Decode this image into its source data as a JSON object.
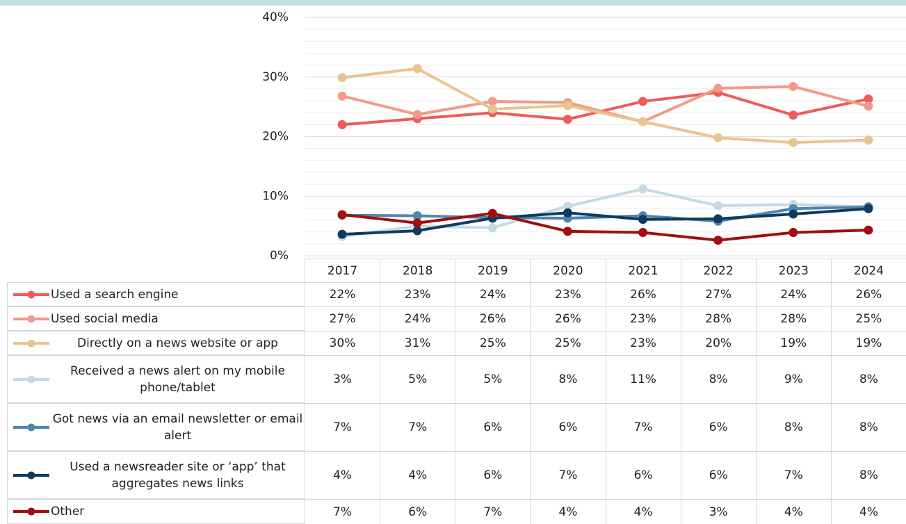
{
  "chart_data": {
    "type": "line",
    "categories": [
      "2017",
      "2018",
      "2019",
      "2020",
      "2021",
      "2022",
      "2023",
      "2024"
    ],
    "ylim": [
      0,
      40
    ],
    "yticks": [
      {
        "value": 0,
        "label": "0%"
      },
      {
        "value": 10,
        "label": "10%"
      },
      {
        "value": 20,
        "label": "20%"
      },
      {
        "value": 30,
        "label": "30%"
      },
      {
        "value": 40,
        "label": "40%"
      }
    ],
    "minor_yticks": [
      2,
      4,
      6,
      8,
      12,
      14,
      16,
      18,
      22,
      24,
      26,
      28,
      32,
      34,
      36,
      38
    ],
    "grid": true,
    "series": [
      {
        "name": "Used a search engine",
        "color": "#ee5b5b",
        "values": [
          22.0,
          23.0,
          24.0,
          22.9,
          25.9,
          27.4,
          23.6,
          26.3
        ],
        "value_labels": [
          "22%",
          "23%",
          "24%",
          "23%",
          "26%",
          "27%",
          "24%",
          "26%"
        ]
      },
      {
        "name": "Used social media",
        "color": "#f29a8a",
        "values": [
          26.8,
          23.7,
          25.9,
          25.7,
          22.5,
          28.1,
          28.4,
          25.1
        ],
        "value_labels": [
          "27%",
          "24%",
          "26%",
          "26%",
          "23%",
          "28%",
          "28%",
          "25%"
        ]
      },
      {
        "name": "Directly on  a news website or app",
        "color": "#e8c48e",
        "values": [
          29.9,
          31.4,
          24.6,
          25.2,
          22.5,
          19.8,
          19.0,
          19.4
        ],
        "value_labels": [
          "30%",
          "31%",
          "25%",
          "25%",
          "23%",
          "20%",
          "19%",
          "19%"
        ]
      },
      {
        "name": "Received a news alert on my mobile phone/tablet",
        "color": "#c3dbe3",
        "values": [
          3.2,
          5.0,
          4.7,
          8.3,
          11.2,
          8.4,
          8.6,
          8.2
        ],
        "value_labels": [
          "3%",
          "5%",
          "5%",
          "8%",
          "11%",
          "8%",
          "9%",
          "8%"
        ]
      },
      {
        "name": "Got news via an email newsletter or email alert",
        "color": "#4f86ad",
        "values": [
          6.8,
          6.7,
          6.4,
          6.3,
          6.7,
          5.8,
          7.9,
          8.2
        ],
        "value_labels": [
          "7%",
          "7%",
          "6%",
          "6%",
          "7%",
          "6%",
          "8%",
          "8%"
        ]
      },
      {
        "name": "Used a newsreader site or ‘app’ that aggregates news links",
        "color": "#123a5e",
        "values": [
          3.6,
          4.2,
          6.3,
          7.2,
          6.1,
          6.2,
          7.0,
          7.9
        ],
        "value_labels": [
          "4%",
          "4%",
          "6%",
          "7%",
          "6%",
          "6%",
          "7%",
          "8%"
        ]
      },
      {
        "name": "Other",
        "color": "#a00e0e",
        "values": [
          6.9,
          5.5,
          7.1,
          4.1,
          3.9,
          2.6,
          3.9,
          4.3
        ],
        "value_labels": [
          "7%",
          "6%",
          "7%",
          "4%",
          "4%",
          "3%",
          "4%",
          "4%"
        ]
      }
    ]
  }
}
